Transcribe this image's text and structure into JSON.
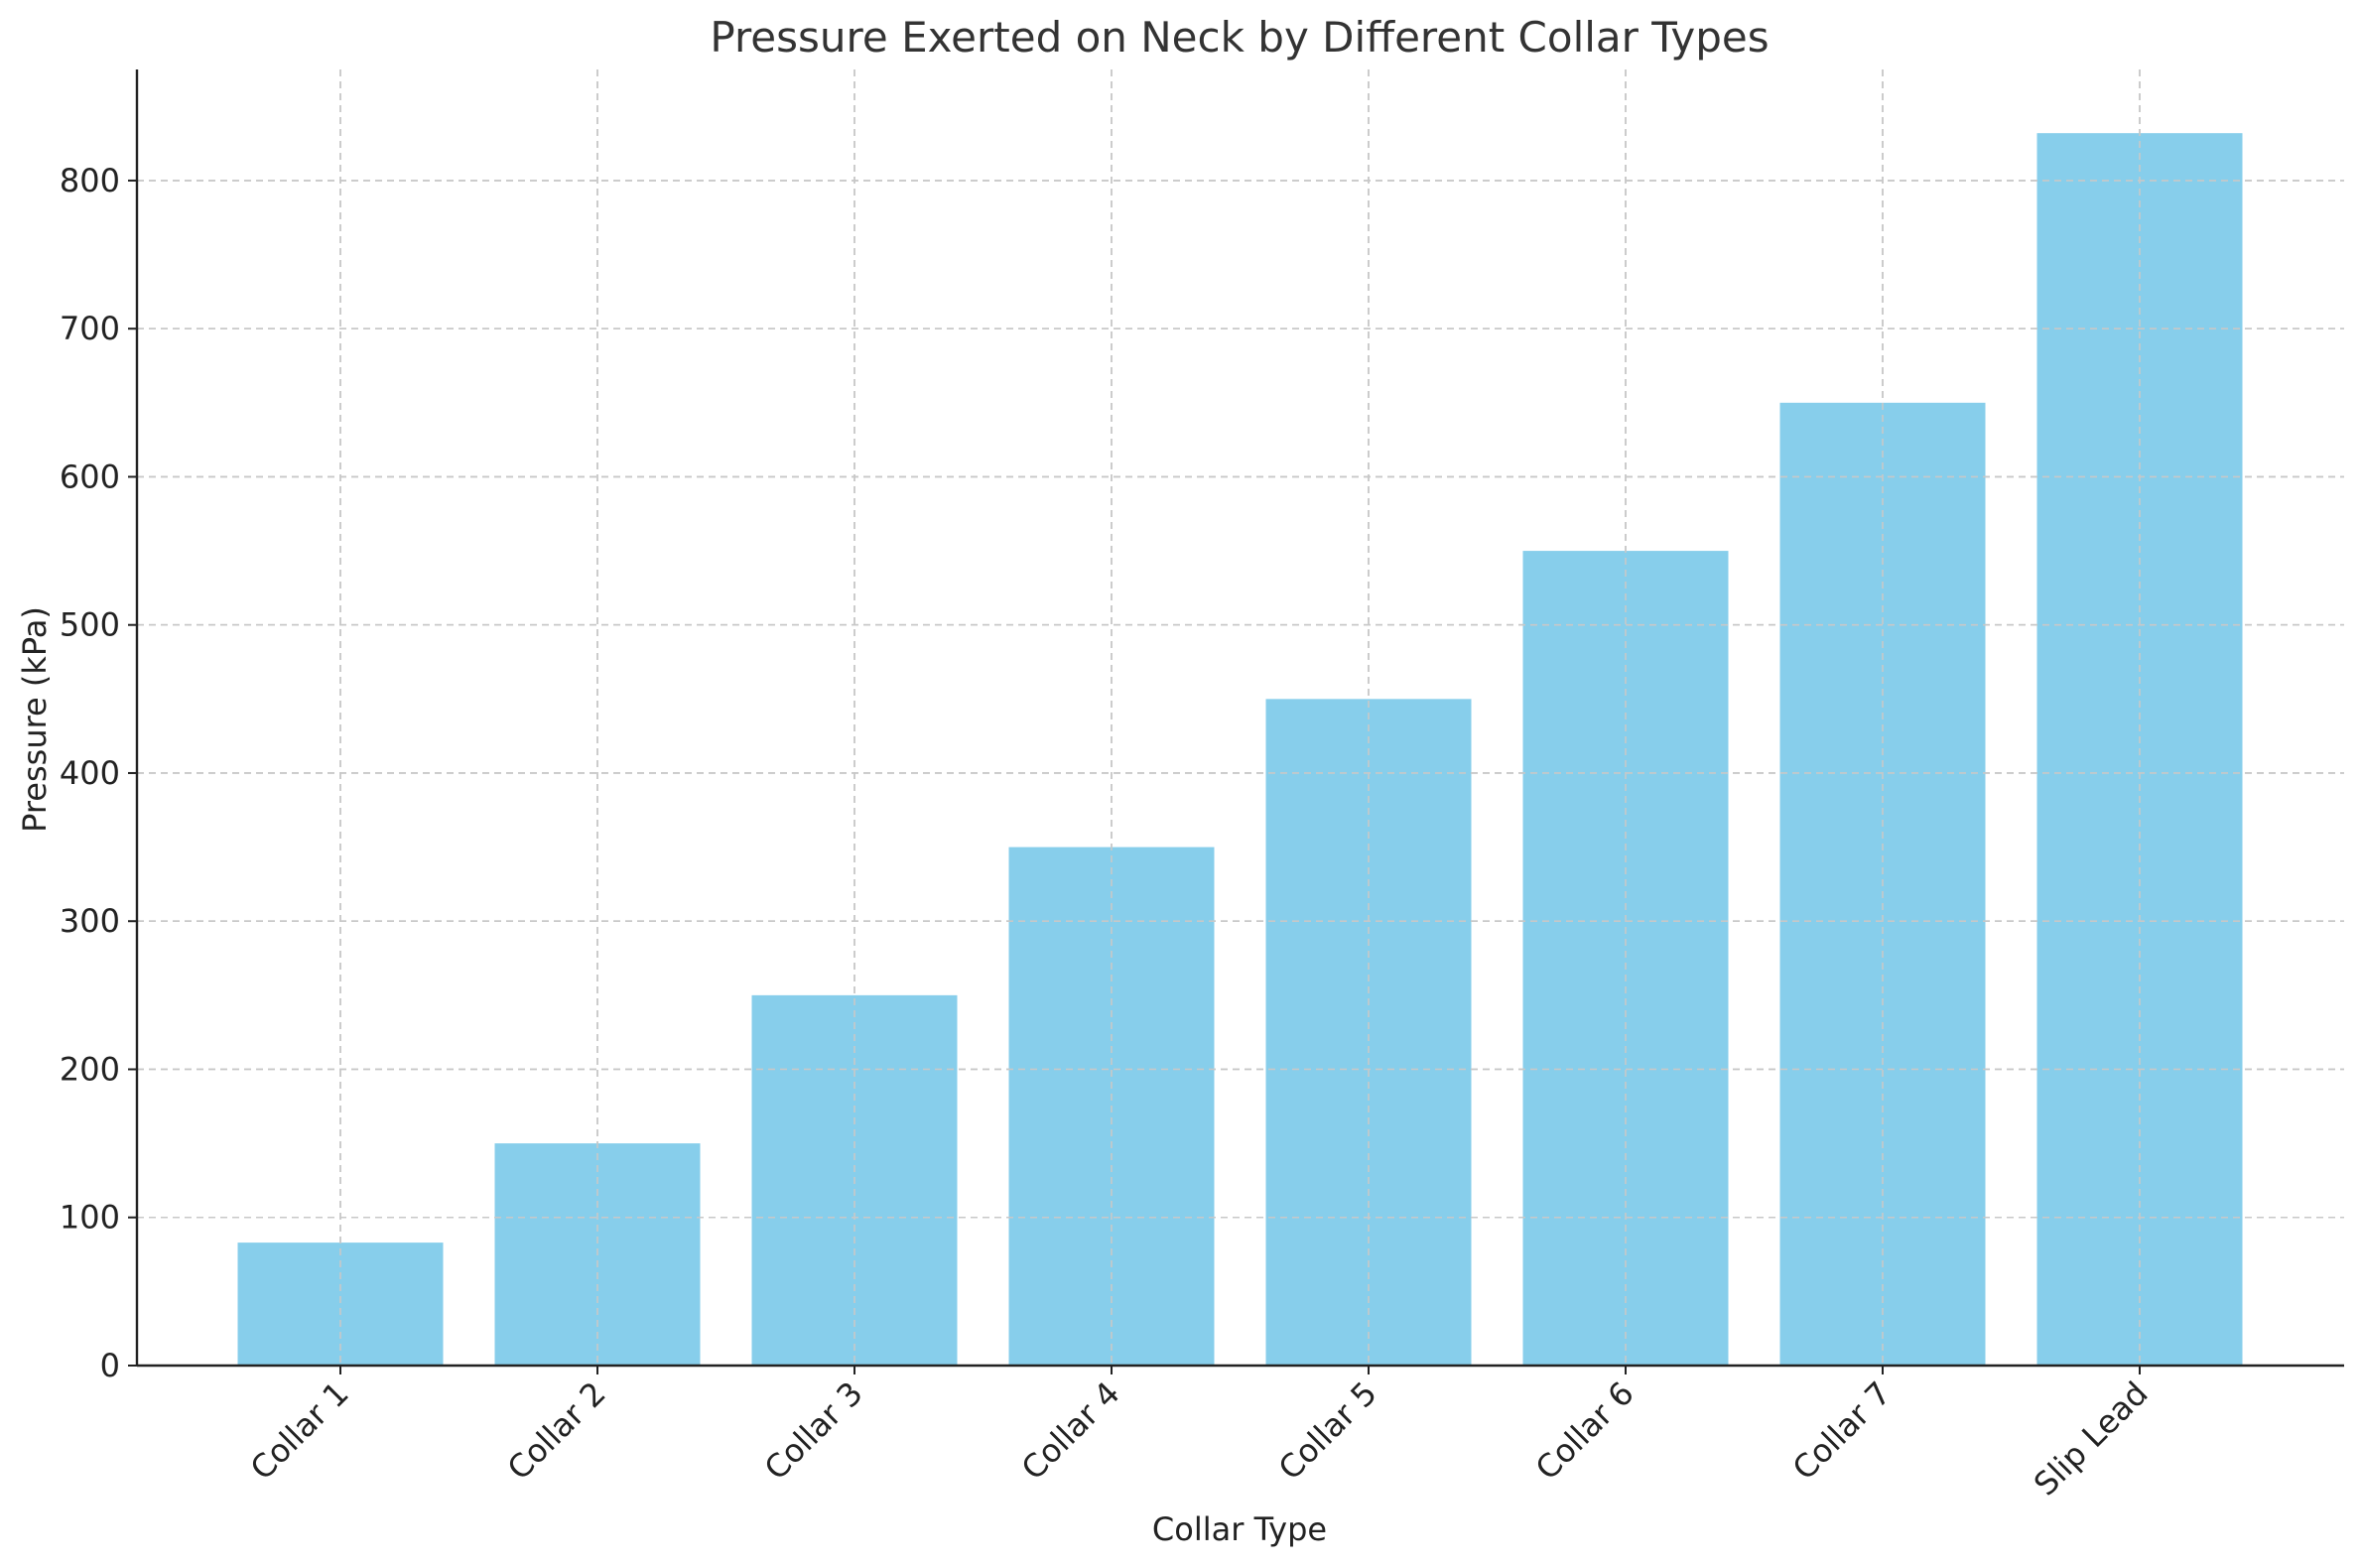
{
  "chart_data": {
    "type": "bar",
    "title": "Pressure Exerted on Neck by Different Collar Types",
    "xlabel": "Collar Type",
    "ylabel": "Pressure (kPa)",
    "categories": [
      "Collar 1",
      "Collar 2",
      "Collar 3",
      "Collar 4",
      "Collar 5",
      "Collar 6",
      "Collar 7",
      "Slip Lead"
    ],
    "values": [
      83,
      150,
      250,
      350,
      450,
      550,
      650,
      832
    ],
    "ylim": [
      0,
      875
    ],
    "yticks": [
      0,
      100,
      200,
      300,
      400,
      500,
      600,
      700,
      800
    ],
    "grid": true,
    "bar_color": "#87CEEB",
    "legend": "none"
  }
}
